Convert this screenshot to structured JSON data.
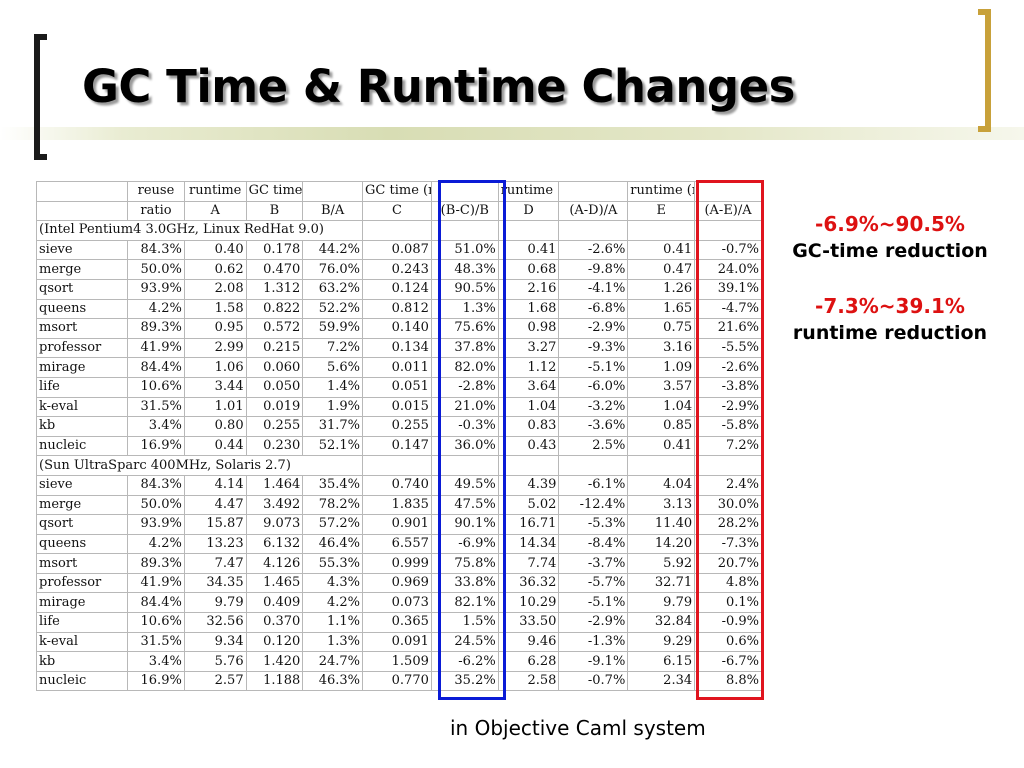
{
  "title": "GC Time & Runtime Changes",
  "table": {
    "header1": [
      "",
      "reuse",
      "runtime",
      "GC time",
      "",
      "GC time (reuse)",
      "",
      "runtime (flags)",
      "",
      "runtime (reuse)",
      ""
    ],
    "header2": [
      "",
      "ratio",
      "A",
      "B",
      "B/A",
      "C",
      "(B-C)/B",
      "D",
      "(A-D)/A",
      "E",
      "(A-E)/A"
    ],
    "sections": [
      {
        "label": "(Intel Pentium4 3.0GHz, Linux RedHat 9.0)",
        "rows": [
          [
            "sieve",
            "84.3%",
            "0.40",
            "0.178",
            "44.2%",
            "0.087",
            "51.0%",
            "0.41",
            "-2.6%",
            "0.41",
            "-0.7%"
          ],
          [
            "merge",
            "50.0%",
            "0.62",
            "0.470",
            "76.0%",
            "0.243",
            "48.3%",
            "0.68",
            "-9.8%",
            "0.47",
            "24.0%"
          ],
          [
            "qsort",
            "93.9%",
            "2.08",
            "1.312",
            "63.2%",
            "0.124",
            "90.5%",
            "2.16",
            "-4.1%",
            "1.26",
            "39.1%"
          ],
          [
            "queens",
            "4.2%",
            "1.58",
            "0.822",
            "52.2%",
            "0.812",
            "1.3%",
            "1.68",
            "-6.8%",
            "1.65",
            "-4.7%"
          ],
          [
            "msort",
            "89.3%",
            "0.95",
            "0.572",
            "59.9%",
            "0.140",
            "75.6%",
            "0.98",
            "-2.9%",
            "0.75",
            "21.6%"
          ],
          [
            "professor",
            "41.9%",
            "2.99",
            "0.215",
            "7.2%",
            "0.134",
            "37.8%",
            "3.27",
            "-9.3%",
            "3.16",
            "-5.5%"
          ],
          [
            "mirage",
            "84.4%",
            "1.06",
            "0.060",
            "5.6%",
            "0.011",
            "82.0%",
            "1.12",
            "-5.1%",
            "1.09",
            "-2.6%"
          ],
          [
            "life",
            "10.6%",
            "3.44",
            "0.050",
            "1.4%",
            "0.051",
            "-2.8%",
            "3.64",
            "-6.0%",
            "3.57",
            "-3.8%"
          ],
          [
            "k-eval",
            "31.5%",
            "1.01",
            "0.019",
            "1.9%",
            "0.015",
            "21.0%",
            "1.04",
            "-3.2%",
            "1.04",
            "-2.9%"
          ],
          [
            "kb",
            "3.4%",
            "0.80",
            "0.255",
            "31.7%",
            "0.255",
            "-0.3%",
            "0.83",
            "-3.6%",
            "0.85",
            "-5.8%"
          ],
          [
            "nucleic",
            "16.9%",
            "0.44",
            "0.230",
            "52.1%",
            "0.147",
            "36.0%",
            "0.43",
            "2.5%",
            "0.41",
            "7.2%"
          ]
        ]
      },
      {
        "label": "(Sun UltraSparc 400MHz, Solaris 2.7)",
        "rows": [
          [
            "sieve",
            "84.3%",
            "4.14",
            "1.464",
            "35.4%",
            "0.740",
            "49.5%",
            "4.39",
            "-6.1%",
            "4.04",
            "2.4%"
          ],
          [
            "merge",
            "50.0%",
            "4.47",
            "3.492",
            "78.2%",
            "1.835",
            "47.5%",
            "5.02",
            "-12.4%",
            "3.13",
            "30.0%"
          ],
          [
            "qsort",
            "93.9%",
            "15.87",
            "9.073",
            "57.2%",
            "0.901",
            "90.1%",
            "16.71",
            "-5.3%",
            "11.40",
            "28.2%"
          ],
          [
            "queens",
            "4.2%",
            "13.23",
            "6.132",
            "46.4%",
            "6.557",
            "-6.9%",
            "14.34",
            "-8.4%",
            "14.20",
            "-7.3%"
          ],
          [
            "msort",
            "89.3%",
            "7.47",
            "4.126",
            "55.3%",
            "0.999",
            "75.8%",
            "7.74",
            "-3.7%",
            "5.92",
            "20.7%"
          ],
          [
            "professor",
            "41.9%",
            "34.35",
            "1.465",
            "4.3%",
            "0.969",
            "33.8%",
            "36.32",
            "-5.7%",
            "32.71",
            "4.8%"
          ],
          [
            "mirage",
            "84.4%",
            "9.79",
            "0.409",
            "4.2%",
            "0.073",
            "82.1%",
            "10.29",
            "-5.1%",
            "9.79",
            "0.1%"
          ],
          [
            "life",
            "10.6%",
            "32.56",
            "0.370",
            "1.1%",
            "0.365",
            "1.5%",
            "33.50",
            "-2.9%",
            "32.84",
            "-0.9%"
          ],
          [
            "k-eval",
            "31.5%",
            "9.34",
            "0.120",
            "1.3%",
            "0.091",
            "24.5%",
            "9.46",
            "-1.3%",
            "9.29",
            "0.6%"
          ],
          [
            "kb",
            "3.4%",
            "5.76",
            "1.420",
            "24.7%",
            "1.509",
            "-6.2%",
            "6.28",
            "-9.1%",
            "6.15",
            "-6.7%"
          ],
          [
            "nucleic",
            "16.9%",
            "2.57",
            "1.188",
            "46.3%",
            "0.770",
            "35.2%",
            "2.58",
            "-0.7%",
            "2.34",
            "8.8%"
          ]
        ]
      }
    ]
  },
  "highlights": {
    "gc": {
      "range": "-6.9%~90.5%",
      "label": "GC-time reduction"
    },
    "runtime": {
      "range": "-7.3%~39.1%",
      "label": "runtime reduction"
    }
  },
  "footer": "in Objective Caml system",
  "colors": {
    "gc_box": "#0a1bd6",
    "runtime_box": "#e0141e",
    "accent_text": "#dd1111",
    "right_bracket": "#c8a13a"
  }
}
